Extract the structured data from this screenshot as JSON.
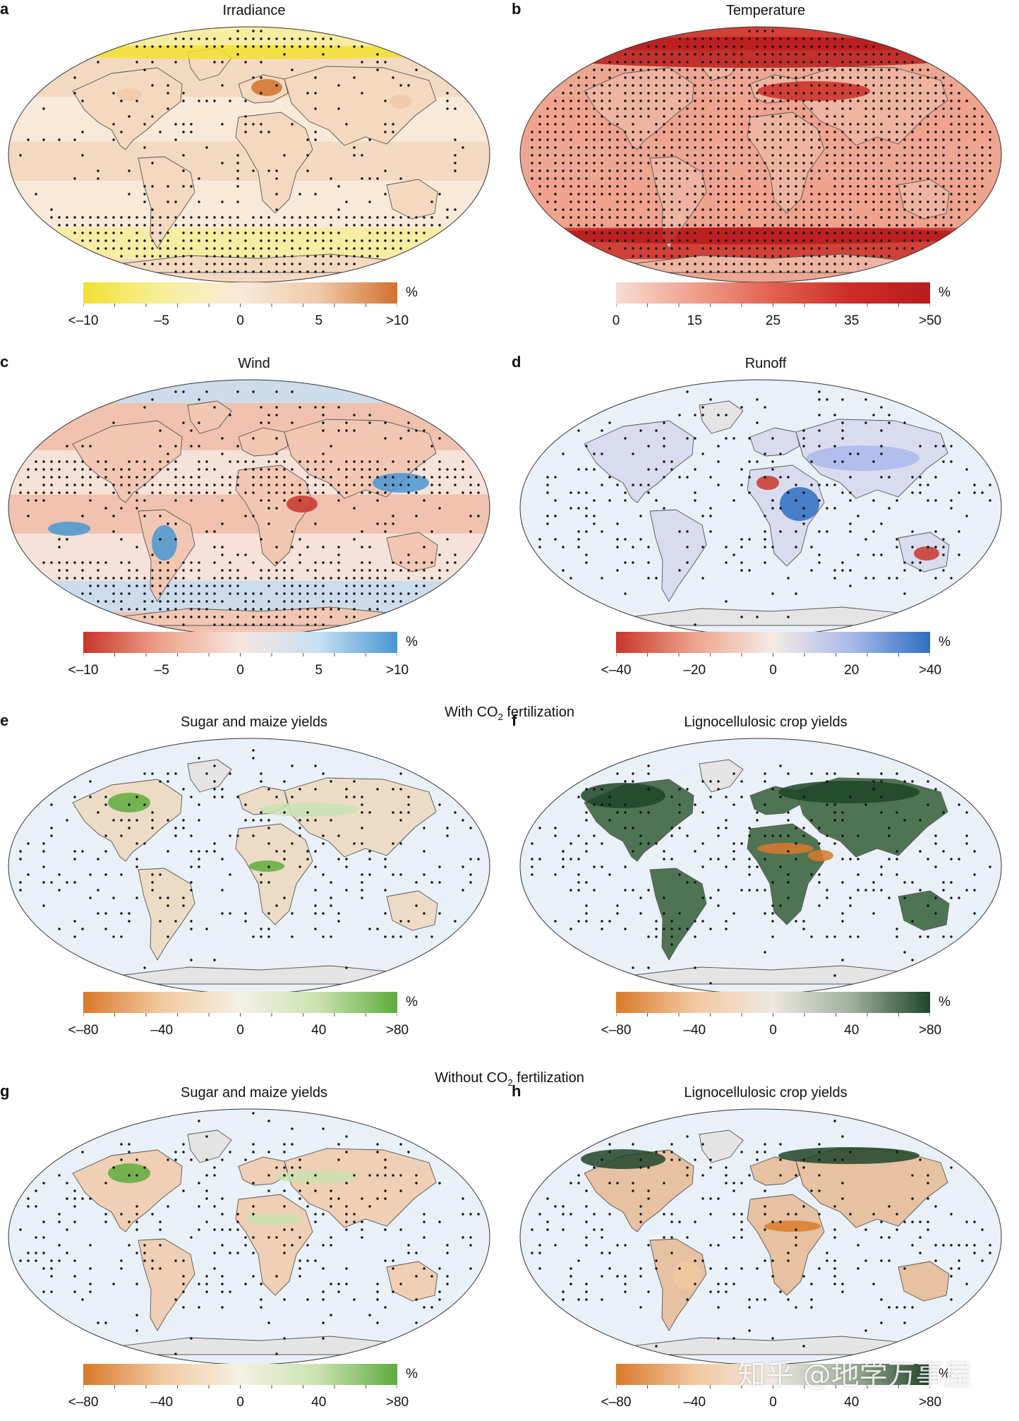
{
  "figure": {
    "headings": {
      "with_co2_prefix": "With CO",
      "with_co2_sub": "2",
      "with_co2_suffix": " fertilization",
      "without_co2_prefix": "Without CO",
      "without_co2_sub": "2",
      "without_co2_suffix": " fertilization"
    },
    "panels": [
      {
        "letter": "a",
        "title": "Irradiance",
        "unit": "%",
        "ticks": [
          "<–10",
          "–5",
          "0",
          "5",
          ">10"
        ],
        "colors": [
          "#f2e032",
          "#f7ef9a",
          "#f8ead9",
          "#f0c9a8",
          "#d2712d"
        ],
        "map_fill": "#f5dcc5",
        "ocean": "#f7e4d2",
        "land_pattern": "light",
        "stipple": "polar"
      },
      {
        "letter": "b",
        "title": "Temperature",
        "unit": "%",
        "ticks": [
          "0",
          "15",
          "25",
          "35",
          ">50"
        ],
        "colors": [
          "#f6ddd2",
          "#ef9f8b",
          "#e2614f",
          "#cc2d26",
          "#b81c1c"
        ],
        "map_fill": "#efb7a6",
        "ocean": "#eeb2a0",
        "land_pattern": "warm",
        "stipple": "dense"
      },
      {
        "letter": "c",
        "title": "Wind",
        "unit": "%",
        "ticks": [
          "<–10",
          "–5",
          "0",
          "5",
          ">10"
        ],
        "colors": [
          "#c8362a",
          "#eea48e",
          "#f6e6de",
          "#c6dff2",
          "#4896d2"
        ],
        "map_fill": "#f3cdbd",
        "ocean": "#f3cbbb",
        "land_pattern": "mixed",
        "stipple": "banded"
      },
      {
        "letter": "d",
        "title": "Runoff",
        "unit": "%",
        "ticks": [
          "<–40",
          "–20",
          "0",
          "20",
          ">40"
        ],
        "colors": [
          "#c8362a",
          "#eea48e",
          "#f4ebe5",
          "#a9b9ea",
          "#2c6fc1"
        ],
        "map_fill": "#f0efef",
        "ocean": "#e9f0f7",
        "land_pattern": "runoff",
        "stipple": "land"
      },
      {
        "letter": "e",
        "title": "Sugar and maize yields",
        "unit": "%",
        "ticks": [
          "<–80",
          "–40",
          "0",
          "40",
          ">80"
        ],
        "colors": [
          "#d97a2a",
          "#f1c9a0",
          "#f4f1e4",
          "#c9e2b0",
          "#5fab3d"
        ],
        "map_fill": "#f4ded0",
        "ocean": "#e9f0f7",
        "land_pattern": "crop1",
        "stipple": "land"
      },
      {
        "letter": "f",
        "title": "Lignocellulosic crop yields",
        "unit": "%",
        "ticks": [
          "<–80",
          "–40",
          "0",
          "40",
          ">80"
        ],
        "colors": [
          "#d97a2a",
          "#f1c9a0",
          "#eee8e0",
          "#9fb09a",
          "#1f4528"
        ],
        "map_fill": "#5b7a5b",
        "ocean": "#e9f0f7",
        "land_pattern": "crop2",
        "stipple": "land"
      },
      {
        "letter": "g",
        "title": "Sugar and maize yields",
        "unit": "%",
        "ticks": [
          "<–80",
          "–40",
          "0",
          "40",
          ">80"
        ],
        "colors": [
          "#d97a2a",
          "#f1c9a0",
          "#f4f1e4",
          "#c9e2b0",
          "#5fab3d"
        ],
        "map_fill": "#f1d6c2",
        "ocean": "#e9f0f7",
        "land_pattern": "crop3",
        "stipple": "land"
      },
      {
        "letter": "h",
        "title": "Lignocellulosic crop yields",
        "unit": "%",
        "ticks": [
          "<–80",
          "–40",
          "0",
          "40",
          ">80"
        ],
        "colors": [
          "#d97a2a",
          "#f1c9a0",
          "#eee8e0",
          "#9fb09a",
          "#1f4528"
        ],
        "map_fill": "#e9c3a5",
        "ocean": "#e9f0f7",
        "land_pattern": "crop4",
        "stipple": "land"
      }
    ],
    "watermark": "知乎 @地学万事屋"
  }
}
